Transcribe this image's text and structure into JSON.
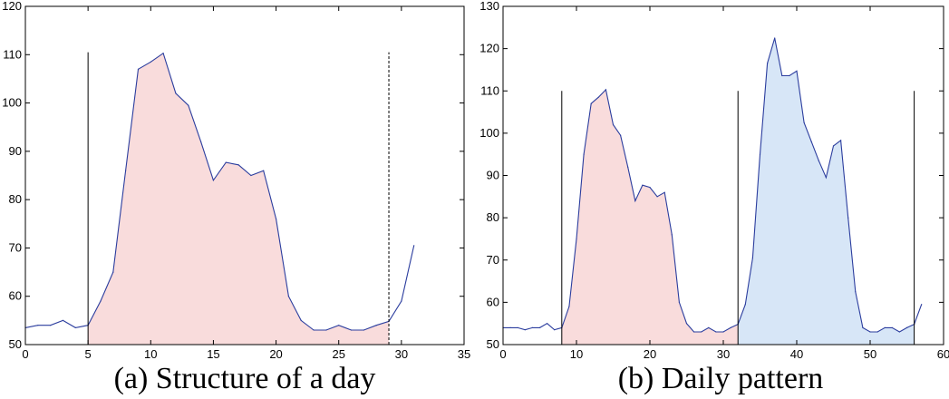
{
  "chart_data": [
    {
      "type": "area",
      "caption": "(a) Structure of a day",
      "xlim": [
        0,
        35
      ],
      "ylim": [
        50,
        120
      ],
      "xticks": [
        0,
        5,
        10,
        15,
        20,
        25,
        30,
        35
      ],
      "yticks": [
        50,
        60,
        70,
        80,
        90,
        100,
        110,
        120
      ],
      "grid": false,
      "line_color": "#2b3d9e",
      "series": [
        {
          "x": [
            0,
            1,
            2,
            3,
            4,
            5,
            6,
            7,
            8,
            9,
            10,
            11,
            12,
            13,
            14,
            15,
            16,
            17,
            18,
            19,
            20,
            21,
            22,
            23,
            24,
            25,
            26,
            27,
            28,
            29,
            30,
            31
          ],
          "values": [
            53.5,
            54,
            54,
            55,
            53.5,
            54,
            59,
            65,
            86,
            107,
            108.5,
            110.3,
            102,
            99.5,
            92,
            84,
            87.7,
            87.2,
            85,
            86,
            76,
            60,
            55,
            53,
            53,
            54,
            53,
            53,
            54,
            54.8,
            59,
            70.5
          ]
        }
      ],
      "vlines": [
        {
          "x": 5,
          "y_top": 110.5,
          "style": "solid"
        },
        {
          "x": 29,
          "y_top": 110.5,
          "style": "dashed"
        }
      ],
      "shaded_regions": [
        {
          "x_from": 5,
          "x_to": 29,
          "color": "#f9dcdc"
        }
      ]
    },
    {
      "type": "area",
      "caption": "(b) Daily pattern",
      "xlim": [
        0,
        60
      ],
      "ylim": [
        50,
        130
      ],
      "xticks": [
        0,
        10,
        20,
        30,
        40,
        50,
        60
      ],
      "yticks": [
        50,
        60,
        70,
        80,
        90,
        100,
        110,
        120,
        130
      ],
      "grid": false,
      "line_color": "#2b3d9e",
      "series": [
        {
          "x": [
            0,
            1,
            2,
            3,
            4,
            5,
            6,
            7,
            8,
            9,
            10,
            11,
            12,
            13,
            14,
            15,
            16,
            17,
            18,
            19,
            20,
            21,
            22,
            23,
            24,
            25,
            26,
            27,
            28,
            29,
            30,
            31,
            32,
            33,
            34,
            35,
            36,
            37,
            38,
            39,
            40,
            41,
            42,
            43,
            44,
            45,
            46,
            47,
            48,
            49,
            50,
            51,
            52,
            53,
            54,
            55,
            56,
            57
          ],
          "values": [
            54,
            54,
            54,
            53.5,
            54,
            54,
            55,
            53.5,
            54,
            59,
            75,
            95,
            107,
            108.5,
            110.3,
            102,
            99.5,
            92,
            84,
            87.7,
            87.2,
            85,
            86,
            76,
            60,
            55,
            53,
            53,
            54,
            53,
            53,
            54,
            54.8,
            59.5,
            70.5,
            95,
            116.5,
            122.5,
            113.6,
            113.6,
            114.7,
            102.5,
            98,
            93.5,
            89.5,
            97,
            98.3,
            80,
            62.5,
            54,
            53,
            53,
            54,
            54,
            53,
            54,
            54.8,
            59.5
          ]
        }
      ],
      "vlines": [
        {
          "x": 8,
          "y_top": 110,
          "style": "solid"
        },
        {
          "x": 32,
          "y_top": 110,
          "style": "solid"
        },
        {
          "x": 56,
          "y_top": 110,
          "style": "solid"
        }
      ],
      "shaded_regions": [
        {
          "x_from": 8,
          "x_to": 32,
          "color": "#f9dcdc"
        },
        {
          "x_from": 32,
          "x_to": 56,
          "color": "#d7e6f7"
        }
      ]
    }
  ]
}
